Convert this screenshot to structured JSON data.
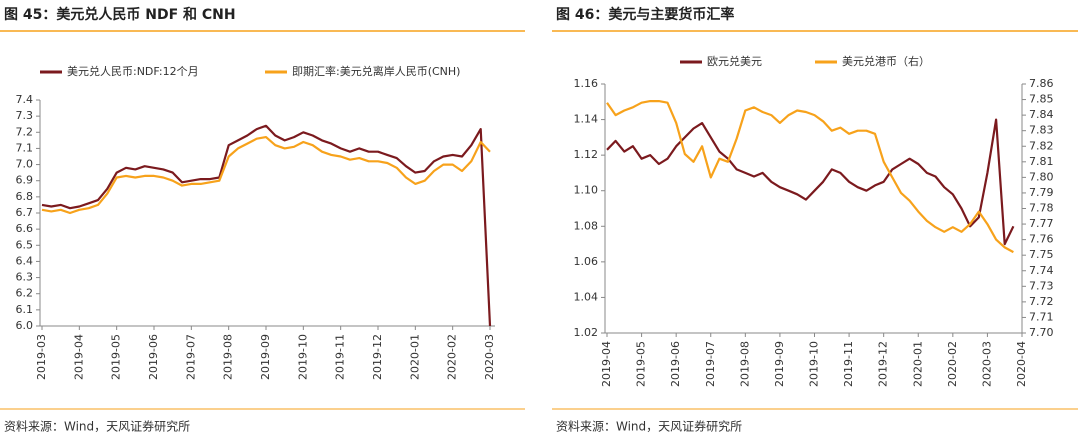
{
  "chart_data": [
    {
      "type": "line",
      "title": "图 45：美元兑人民币 NDF 和 CNH",
      "source": "资料来源：Wind，天风证券研究所",
      "categories": [
        "2019-03",
        null,
        null,
        null,
        "2019-04",
        null,
        null,
        null,
        "2019-05",
        null,
        null,
        null,
        "2019-06",
        null,
        null,
        null,
        "2019-07",
        null,
        null,
        null,
        "2019-08",
        null,
        null,
        null,
        "2019-09",
        null,
        null,
        null,
        "2019-10",
        null,
        null,
        null,
        "2019-11",
        null,
        null,
        null,
        "2019-12",
        null,
        null,
        null,
        "2020-01",
        null,
        null,
        null,
        "2020-02",
        null,
        null,
        null,
        "2020-03"
      ],
      "ylim": [
        6.0,
        7.4
      ],
      "yticks": [
        {
          "value": 6.0,
          "label": "6.0"
        },
        6.1,
        6.2,
        6.3,
        6.4,
        6.5,
        6.6,
        6.7,
        6.8,
        6.9,
        {
          "value": 7.0,
          "label": "7.0"
        },
        7.1,
        7.2,
        7.3,
        7.4
      ],
      "series": [
        {
          "name": "美元兑人民币:NDF:12个月",
          "color": "#7b1a1e",
          "values": [
            6.75,
            6.74,
            6.75,
            6.73,
            6.74,
            6.76,
            6.78,
            6.85,
            6.95,
            6.98,
            6.97,
            6.99,
            6.98,
            6.97,
            6.95,
            6.89,
            6.9,
            6.91,
            6.91,
            6.92,
            7.12,
            7.15,
            7.18,
            7.22,
            7.24,
            7.18,
            7.15,
            7.17,
            7.2,
            7.18,
            7.15,
            7.13,
            7.1,
            7.08,
            7.1,
            7.08,
            7.08,
            7.06,
            7.04,
            6.99,
            6.95,
            6.96,
            7.02,
            7.05,
            7.06,
            7.05,
            7.12,
            7.22,
            6.0
          ]
        },
        {
          "name": "即期汇率:美元兑离岸人民币(CNH)",
          "color": "#f7a21b",
          "values": [
            6.72,
            6.71,
            6.72,
            6.7,
            6.72,
            6.73,
            6.75,
            6.82,
            6.92,
            6.93,
            6.92,
            6.93,
            6.93,
            6.92,
            6.9,
            6.87,
            6.88,
            6.88,
            6.89,
            6.9,
            7.05,
            7.1,
            7.13,
            7.16,
            7.17,
            7.12,
            7.1,
            7.11,
            7.14,
            7.12,
            7.08,
            7.06,
            7.05,
            7.03,
            7.04,
            7.02,
            7.02,
            7.01,
            6.98,
            6.92,
            6.88,
            6.9,
            6.96,
            7.0,
            7.0,
            6.96,
            7.02,
            7.14,
            7.08
          ]
        }
      ]
    },
    {
      "type": "line",
      "title": "图 46：美元与主要货币汇率",
      "source": "资料来源：Wind，天风证券研究所",
      "categories": [
        "2019-04",
        null,
        null,
        null,
        "2019-05",
        null,
        null,
        null,
        "2019-06",
        null,
        null,
        null,
        "2019-07",
        null,
        null,
        null,
        "2019-08",
        null,
        null,
        null,
        "2019-09",
        null,
        null,
        null,
        "2019-10",
        null,
        null,
        null,
        "2019-11",
        null,
        null,
        null,
        "2019-12",
        null,
        null,
        null,
        "2020-01",
        null,
        null,
        null,
        "2020-02",
        null,
        null,
        null,
        "2020-03",
        null,
        null,
        null,
        "2020-04"
      ],
      "ylim": [
        1.02,
        1.16
      ],
      "yticks": [
        1.02,
        1.04,
        1.06,
        1.08,
        {
          "value": 1.1,
          "label": "1.10"
        },
        1.12,
        1.14,
        1.16
      ],
      "y2lim": [
        7.7,
        7.86
      ],
      "y2ticks": [
        {
          "value": 7.7,
          "label": "7.70"
        },
        7.71,
        7.72,
        7.73,
        7.74,
        7.75,
        7.76,
        7.77,
        7.78,
        7.79,
        {
          "value": 7.8,
          "label": "7.80"
        },
        7.81,
        7.82,
        7.83,
        7.84,
        7.85,
        7.86
      ],
      "series": [
        {
          "name": "欧元兑美元",
          "color": "#7b1a1e",
          "values": [
            1.123,
            1.128,
            1.122,
            1.125,
            1.118,
            1.12,
            1.115,
            1.118,
            1.125,
            1.13,
            1.135,
            1.138,
            1.13,
            1.122,
            1.118,
            1.112,
            1.11,
            1.108,
            1.11,
            1.105,
            1.102,
            1.1,
            1.098,
            1.095,
            1.1,
            1.105,
            1.112,
            1.11,
            1.105,
            1.102,
            1.1,
            1.103,
            1.105,
            1.112,
            1.115,
            1.118,
            1.115,
            1.11,
            1.108,
            1.102,
            1.098,
            1.09,
            1.08,
            1.085,
            1.11,
            1.14,
            1.07,
            1.08,
            null
          ]
        },
        {
          "name": "美元兑港币（右）",
          "color": "#f7a21b",
          "axis": "y2",
          "values": [
            7.848,
            7.84,
            7.843,
            7.845,
            7.848,
            7.849,
            7.849,
            7.848,
            7.835,
            7.815,
            7.81,
            7.82,
            7.8,
            7.812,
            7.81,
            7.825,
            7.843,
            7.845,
            7.842,
            7.84,
            7.835,
            7.84,
            7.843,
            7.842,
            7.84,
            7.836,
            7.83,
            7.832,
            7.828,
            7.83,
            7.83,
            7.828,
            7.81,
            7.8,
            7.79,
            7.785,
            7.778,
            7.772,
            7.768,
            7.765,
            7.768,
            7.765,
            7.77,
            7.778,
            7.77,
            7.76,
            7.755,
            7.752,
            null
          ]
        }
      ]
    }
  ]
}
